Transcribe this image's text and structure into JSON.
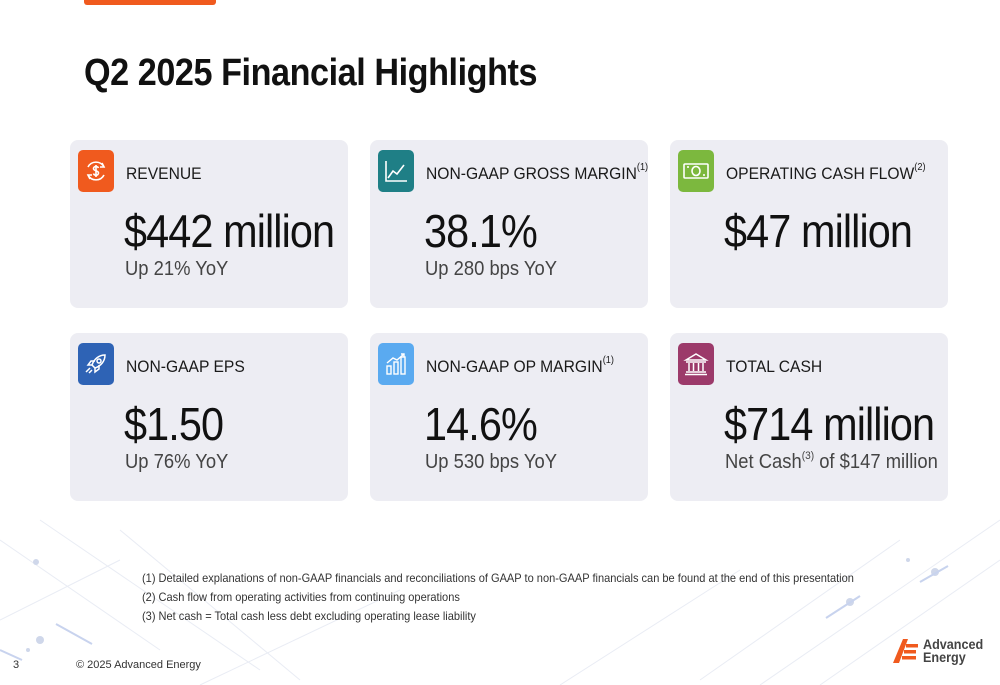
{
  "title": "Q2 2025 Financial Highlights",
  "cards": [
    {
      "label": "REVENUE",
      "sup": "",
      "value": "$442 million",
      "sub": "Up 21% YoY",
      "sub_sup": "",
      "sub_tail": "",
      "icon": "dollar-cycle-icon",
      "color": "#f05a1e"
    },
    {
      "label": "NON-GAAP GROSS MARGIN",
      "sup": "(1)",
      "value": "38.1%",
      "sub": "Up 280 bps YoY",
      "sub_sup": "",
      "sub_tail": "",
      "icon": "line-chart-icon",
      "color": "#1f7f86"
    },
    {
      "label": "OPERATING CASH FLOW",
      "sup": "(2)",
      "value": "$47 million",
      "sub": "",
      "sub_sup": "",
      "sub_tail": "",
      "icon": "banknote-icon",
      "color": "#7cb83e"
    },
    {
      "label": "NON-GAAP EPS",
      "sup": "",
      "value": "$1.50",
      "sub": "Up 76% YoY",
      "sub_sup": "",
      "sub_tail": "",
      "icon": "rocket-icon",
      "color": "#2e63b5"
    },
    {
      "label": "NON-GAAP OP MARGIN",
      "sup": "(1)",
      "value": "14.6%",
      "sub": "Up 530 bps YoY",
      "sub_sup": "",
      "sub_tail": "",
      "icon": "bar-chart-growth-icon",
      "color": "#5aaaf0"
    },
    {
      "label": "TOTAL CASH",
      "sup": "",
      "value": "$714 million",
      "sub": "Net Cash",
      "sub_sup": "(3)",
      "sub_tail": " of $147 million",
      "icon": "bank-building-icon",
      "color": "#9c3a6a"
    }
  ],
  "footnotes": [
    "(1)  Detailed explanations of non-GAAP financials and reconciliations of GAAP to non-GAAP financials can be found at the end of this presentation",
    "(2)  Cash flow from operating activities from continuing operations",
    "(3)  Net cash = Total cash less debt excluding operating lease liability"
  ],
  "footer": {
    "page_number": "3",
    "copyright": "© 2025 Advanced Energy"
  },
  "logo": {
    "line1": "Advanced",
    "line2": "Energy",
    "icon": "advanced-energy-logo-icon",
    "color": "#f05a1e"
  }
}
